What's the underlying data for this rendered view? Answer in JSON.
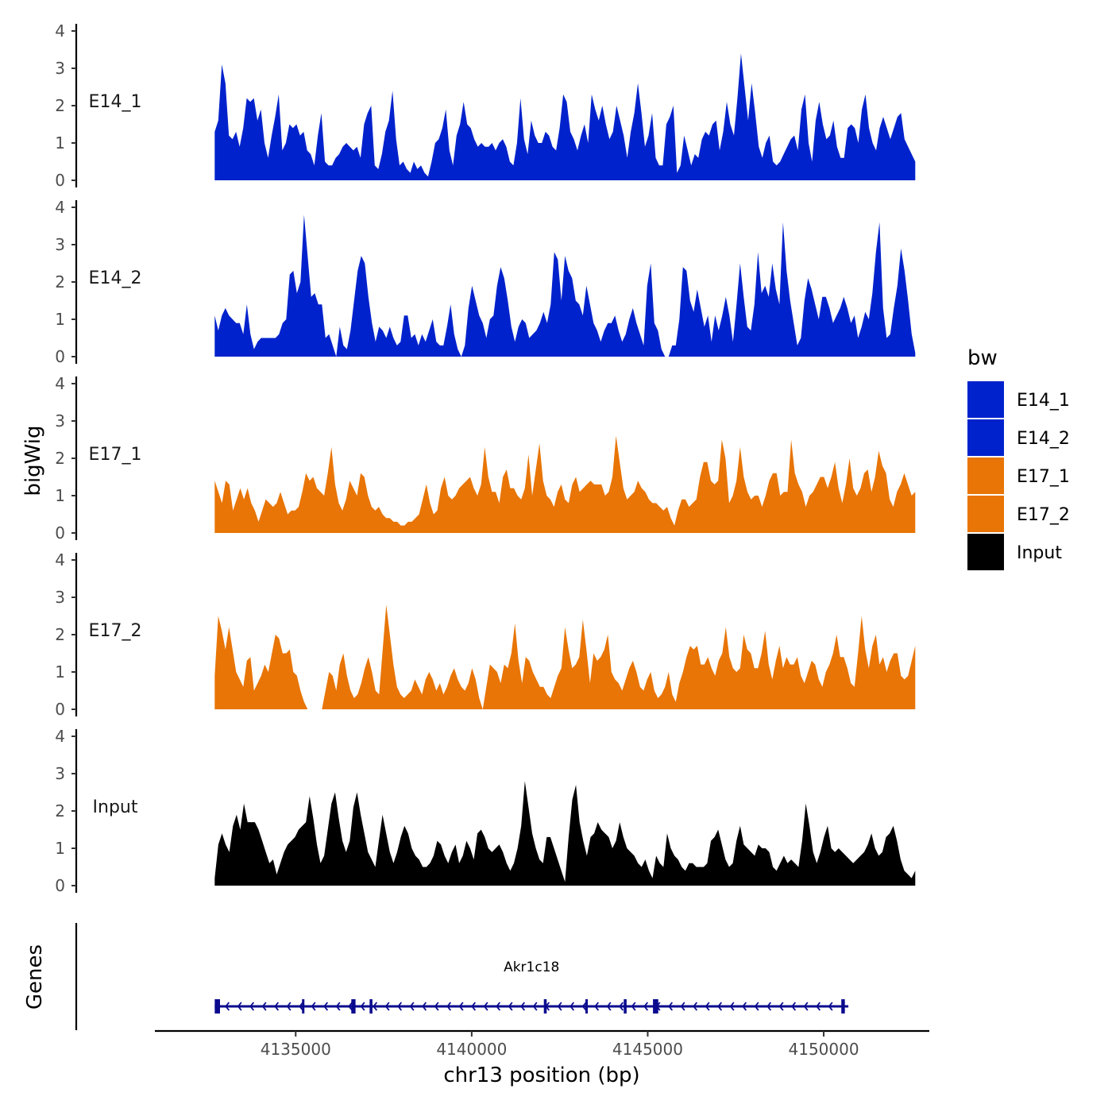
{
  "chart_data": {
    "type": "area",
    "genome_track": true,
    "ylabel": "bigWig",
    "xlabel": "chr13 position (bp)",
    "genes_label": "Genes",
    "xlim": [
      4131000,
      4153000
    ],
    "x_start": 4132700,
    "x_end": 4152600,
    "x_ticks": [
      4135000,
      4140000,
      4145000,
      4150000
    ],
    "x_tick_labels": [
      "4135000",
      "4140000",
      "4145000",
      "4150000"
    ],
    "ylim": [
      0,
      4
    ],
    "y_ticks": [
      0,
      1,
      2,
      3,
      4
    ],
    "y_tick_labels": [
      "0",
      "1",
      "2",
      "3",
      "4"
    ],
    "legend": {
      "title": "bw",
      "placement": "right",
      "entries": [
        {
          "label": "E14_1",
          "color": "#0022CC"
        },
        {
          "label": "E14_2",
          "color": "#0022CC"
        },
        {
          "label": "E17_1",
          "color": "#E87506"
        },
        {
          "label": "E17_2",
          "color": "#E87506"
        },
        {
          "label": "Input",
          "color": "#000000"
        }
      ]
    },
    "series": [
      {
        "name": "E14_1",
        "color": "#0022CC",
        "values": [
          1.3,
          1.6,
          3.1,
          2.6,
          1.2,
          1.1,
          1.3,
          0.9,
          1.4,
          2.2,
          2.1,
          2.2,
          1.6,
          1.9,
          1.0,
          0.6,
          1.2,
          1.7,
          2.3,
          0.8,
          1.0,
          1.5,
          1.4,
          1.5,
          1.2,
          1.3,
          0.8,
          0.7,
          0.4,
          1.2,
          1.8,
          0.5,
          0.4,
          0.4,
          0.6,
          0.7,
          0.9,
          1.0,
          0.9,
          0.8,
          0.9,
          0.6,
          1.5,
          1.8,
          2.0,
          0.4,
          0.3,
          0.7,
          1.3,
          1.6,
          2.4,
          1.1,
          0.4,
          0.5,
          0.3,
          0.2,
          0.5,
          0.3,
          0.4,
          0.2,
          0.1,
          0.5,
          1.0,
          1.1,
          1.4,
          1.9,
          0.8,
          0.4,
          1.2,
          1.5,
          2.1,
          1.5,
          1.4,
          1.1,
          0.9,
          1.0,
          0.9,
          0.9,
          1.0,
          0.8,
          1.0,
          1.1,
          0.9,
          0.5,
          0.4,
          1.0,
          2.2,
          1.1,
          0.7,
          1.6,
          1.2,
          1.0,
          1.0,
          1.3,
          1.2,
          0.9,
          0.8,
          1.4,
          2.3,
          2.1,
          1.3,
          1.1,
          0.8,
          1.2,
          1.5,
          1.0,
          2.3,
          1.9,
          1.6,
          2.0,
          1.5,
          1.1,
          1.3,
          2.0,
          1.6,
          1.2,
          0.6,
          1.3,
          1.8,
          2.6,
          1.8,
          0.9,
          1.2,
          1.8,
          0.6,
          0.4,
          0.4,
          1.5,
          1.7,
          2.0,
          0.2,
          0.4,
          1.2,
          0.8,
          0.4,
          0.7,
          0.6,
          1.1,
          1.3,
          1.2,
          1.5,
          1.6,
          0.8,
          1.3,
          2.1,
          1.5,
          1.2,
          2.2,
          3.4,
          2.5,
          1.6,
          2.6,
          1.8,
          0.9,
          0.6,
          1.0,
          1.2,
          0.5,
          0.4,
          0.5,
          0.7,
          0.9,
          1.1,
          1.2,
          0.8,
          1.9,
          2.3,
          1.0,
          0.5,
          1.6,
          2.1,
          1.5,
          1.1,
          1.2,
          1.6,
          0.9,
          0.6,
          0.6,
          1.4,
          1.5,
          1.4,
          1.0,
          1.9,
          2.3,
          1.4,
          1.0,
          0.8,
          1.4,
          1.7,
          1.4,
          1.1,
          1.4,
          1.7,
          1.8,
          1.1,
          0.9,
          0.7,
          0.5
        ]
      },
      {
        "name": "E14_2",
        "color": "#0022CC",
        "values": [
          1.1,
          0.7,
          1.1,
          1.3,
          1.1,
          1.0,
          0.9,
          0.9,
          0.6,
          1.4,
          0.6,
          0.2,
          0.4,
          0.5,
          0.5,
          0.5,
          0.5,
          0.5,
          0.6,
          0.9,
          1.0,
          2.2,
          2.3,
          1.7,
          2.0,
          3.8,
          2.7,
          1.6,
          1.7,
          1.4,
          1.4,
          0.5,
          0.6,
          0.3,
          0.0,
          0.8,
          0.3,
          0.2,
          0.7,
          1.5,
          2.3,
          2.7,
          2.5,
          1.6,
          0.9,
          0.4,
          0.8,
          0.7,
          0.5,
          0.8,
          0.5,
          0.3,
          0.4,
          1.1,
          1.1,
          0.5,
          0.6,
          0.3,
          0.6,
          0.4,
          0.7,
          1.0,
          0.4,
          0.3,
          0.3,
          0.8,
          1.4,
          0.6,
          0.2,
          0.0,
          0.3,
          1.3,
          1.9,
          1.5,
          1.1,
          0.9,
          0.5,
          1.0,
          1.1,
          1.9,
          2.4,
          2.1,
          1.5,
          0.8,
          0.4,
          0.8,
          1.0,
          0.9,
          0.5,
          0.6,
          0.7,
          0.9,
          1.2,
          0.9,
          1.4,
          2.8,
          2.6,
          1.5,
          2.7,
          2.3,
          2.1,
          1.5,
          1.4,
          1.1,
          1.9,
          1.4,
          0.9,
          0.7,
          0.4,
          0.7,
          0.9,
          0.9,
          1.1,
          0.7,
          0.4,
          0.6,
          1.0,
          1.3,
          0.9,
          0.6,
          0.3,
          1.9,
          2.5,
          0.9,
          0.7,
          0.2,
          0.0,
          0.0,
          0.3,
          0.3,
          1.0,
          2.4,
          2.3,
          1.5,
          1.2,
          1.8,
          1.3,
          0.8,
          1.1,
          0.4,
          1.1,
          0.7,
          1.1,
          1.6,
          1.1,
          0.4,
          1.4,
          2.5,
          1.6,
          0.8,
          0.7,
          1.4,
          2.8,
          1.7,
          1.9,
          1.6,
          2.5,
          1.8,
          1.4,
          3.6,
          2.3,
          1.5,
          0.9,
          0.3,
          0.5,
          1.5,
          2.1,
          1.8,
          1.4,
          1.0,
          1.6,
          1.6,
          1.3,
          0.9,
          1.1,
          1.3,
          1.6,
          1.3,
          0.9,
          1.1,
          0.5,
          0.8,
          1.2,
          1.0,
          1.7,
          2.8,
          3.6,
          1.3,
          0.5,
          0.6,
          1.3,
          1.9,
          2.9,
          2.3,
          1.5,
          0.6,
          0.1
        ]
      },
      {
        "name": "E17_1",
        "color": "#E87506",
        "values": [
          1.4,
          1.1,
          0.8,
          1.4,
          1.3,
          0.6,
          0.9,
          1.2,
          0.9,
          1.2,
          0.8,
          0.6,
          0.3,
          0.6,
          0.9,
          0.8,
          0.7,
          0.8,
          1.1,
          0.8,
          0.5,
          0.6,
          0.6,
          0.7,
          1.1,
          1.6,
          1.4,
          1.5,
          1.2,
          1.1,
          1.0,
          1.6,
          2.3,
          1.3,
          0.8,
          0.6,
          0.9,
          1.4,
          1.2,
          1.0,
          1.6,
          1.5,
          1.0,
          0.7,
          0.6,
          0.7,
          0.5,
          0.4,
          0.4,
          0.3,
          0.3,
          0.2,
          0.2,
          0.3,
          0.3,
          0.4,
          0.5,
          0.9,
          1.3,
          0.8,
          0.5,
          0.6,
          1.2,
          1.5,
          1.0,
          0.9,
          1.0,
          1.2,
          1.3,
          1.4,
          1.5,
          1.2,
          1.0,
          1.3,
          2.3,
          1.5,
          1.1,
          1.1,
          0.8,
          1.5,
          1.7,
          1.2,
          1.2,
          1.0,
          0.9,
          1.2,
          2.1,
          1.0,
          1.7,
          2.4,
          1.4,
          1.0,
          0.9,
          0.7,
          1.1,
          1.3,
          0.9,
          0.8,
          1.3,
          1.5,
          1.1,
          1.2,
          1.3,
          1.4,
          1.3,
          1.3,
          1.3,
          1.0,
          1.1,
          1.5,
          2.6,
          1.9,
          1.2,
          0.9,
          1.0,
          1.1,
          1.4,
          1.2,
          1.1,
          0.9,
          0.8,
          0.8,
          0.7,
          0.6,
          0.7,
          0.4,
          0.2,
          0.6,
          0.9,
          0.9,
          0.7,
          0.8,
          0.9,
          1.5,
          1.9,
          1.9,
          1.4,
          1.3,
          1.4,
          2.5,
          2.0,
          0.8,
          1.0,
          1.4,
          2.3,
          1.5,
          1.1,
          0.9,
          1.0,
          1.0,
          0.7,
          1.0,
          1.4,
          1.6,
          1.6,
          1.0,
          1.1,
          1.1,
          2.5,
          1.6,
          1.3,
          1.1,
          0.7,
          1.0,
          1.1,
          1.3,
          1.5,
          1.5,
          1.2,
          1.5,
          1.9,
          1.2,
          0.8,
          1.3,
          2.0,
          1.2,
          1.0,
          1.2,
          1.6,
          1.7,
          1.1,
          1.5,
          2.2,
          1.8,
          1.6,
          0.9,
          0.7,
          1.1,
          1.3,
          1.6,
          1.3,
          1.0,
          1.1
        ]
      },
      {
        "name": "E17_2",
        "color": "#E87506",
        "values": [
          0.9,
          2.5,
          2.1,
          1.6,
          2.2,
          1.6,
          1.0,
          0.8,
          0.6,
          1.3,
          1.4,
          0.5,
          0.7,
          0.9,
          1.2,
          1.0,
          1.5,
          2.0,
          1.9,
          1.5,
          1.5,
          1.6,
          1.0,
          0.9,
          0.5,
          0.2,
          0.0,
          0.0,
          0.0,
          0.0,
          0.0,
          0.5,
          1.0,
          0.9,
          0.5,
          1.2,
          1.5,
          0.9,
          0.5,
          0.3,
          0.4,
          0.7,
          1.1,
          1.4,
          1.0,
          0.5,
          0.4,
          1.6,
          2.8,
          2.0,
          1.2,
          0.6,
          0.4,
          0.3,
          0.4,
          0.5,
          0.8,
          0.6,
          0.4,
          0.8,
          1.0,
          0.8,
          0.5,
          0.7,
          0.4,
          0.6,
          0.9,
          1.1,
          0.8,
          0.6,
          0.5,
          0.7,
          1.1,
          0.8,
          0.3,
          0.0,
          0.6,
          1.2,
          1.1,
          1.0,
          0.7,
          1.2,
          1.1,
          1.5,
          2.3,
          1.3,
          0.7,
          1.4,
          1.3,
          1.0,
          0.8,
          0.6,
          0.6,
          0.4,
          0.3,
          0.6,
          0.9,
          1.1,
          2.2,
          1.6,
          1.1,
          1.2,
          1.4,
          2.4,
          1.6,
          0.7,
          1.5,
          1.3,
          1.4,
          1.6,
          2.0,
          1.0,
          0.8,
          0.7,
          0.5,
          0.8,
          1.1,
          1.3,
          1.0,
          0.6,
          0.5,
          0.8,
          1.0,
          0.5,
          0.3,
          0.4,
          0.6,
          1.0,
          0.4,
          0.2,
          0.7,
          1.0,
          1.4,
          1.7,
          1.6,
          1.7,
          1.2,
          1.2,
          1.4,
          1.1,
          0.9,
          1.3,
          1.5,
          2.2,
          1.4,
          1.1,
          1.0,
          1.1,
          2.0,
          1.6,
          1.5,
          1.1,
          1.1,
          1.5,
          2.1,
          1.2,
          0.8,
          1.3,
          1.7,
          1.1,
          1.4,
          1.2,
          1.2,
          1.4,
          0.9,
          0.7,
          1.0,
          1.3,
          1.2,
          0.8,
          0.6,
          1.0,
          1.2,
          1.5,
          2.0,
          1.4,
          1.4,
          1.1,
          0.7,
          0.6,
          1.5,
          2.5,
          1.6,
          1.1,
          1.7,
          2.0,
          1.2,
          1.4,
          1.0,
          1.3,
          1.5,
          1.5,
          0.9,
          0.8,
          0.9,
          1.3,
          1.7
        ]
      },
      {
        "name": "Input",
        "color": "#000000",
        "values": [
          0.2,
          1.1,
          1.4,
          1.1,
          0.9,
          1.6,
          1.9,
          1.5,
          2.2,
          1.7,
          1.7,
          1.7,
          1.5,
          1.2,
          0.9,
          0.6,
          0.7,
          0.3,
          0.6,
          0.9,
          1.1,
          1.2,
          1.3,
          1.5,
          1.6,
          1.7,
          2.4,
          1.8,
          1.1,
          0.6,
          0.8,
          1.5,
          2.2,
          2.5,
          1.8,
          1.2,
          0.9,
          1.2,
          2.1,
          2.5,
          1.9,
          1.4,
          0.9,
          0.7,
          0.5,
          1.2,
          1.9,
          1.4,
          0.9,
          0.6,
          0.9,
          1.3,
          1.6,
          1.4,
          1.0,
          0.8,
          0.7,
          0.5,
          0.5,
          0.6,
          0.8,
          1.2,
          1.1,
          0.8,
          0.6,
          0.9,
          1.1,
          0.6,
          0.8,
          1.2,
          1.0,
          0.7,
          1.4,
          1.5,
          1.3,
          1.0,
          0.9,
          1.0,
          1.1,
          0.9,
          0.6,
          0.4,
          0.6,
          1.0,
          1.6,
          2.8,
          2.1,
          1.4,
          1.0,
          0.7,
          0.6,
          1.3,
          1.3,
          1.0,
          0.7,
          0.4,
          0.1,
          1.3,
          2.3,
          2.7,
          1.7,
          1.2,
          0.8,
          1.3,
          1.4,
          1.7,
          1.5,
          1.4,
          1.3,
          1.0,
          1.2,
          1.7,
          1.3,
          1.0,
          0.9,
          0.8,
          0.6,
          0.5,
          0.7,
          0.4,
          0.2,
          0.8,
          0.6,
          0.5,
          1.4,
          1.0,
          0.8,
          0.7,
          0.5,
          0.4,
          0.6,
          0.6,
          0.5,
          0.5,
          0.5,
          0.6,
          1.2,
          1.3,
          1.5,
          1.1,
          0.7,
          0.5,
          0.6,
          1.2,
          1.6,
          1.1,
          1.0,
          0.9,
          0.8,
          1.1,
          1.0,
          1.0,
          0.9,
          0.5,
          0.4,
          0.6,
          0.8,
          0.6,
          0.7,
          0.6,
          0.5,
          1.2,
          2.2,
          1.6,
          0.9,
          0.6,
          0.9,
          1.3,
          1.6,
          1.0,
          0.9,
          1.0,
          0.9,
          0.8,
          0.7,
          0.6,
          0.7,
          0.8,
          0.9,
          1.1,
          1.4,
          1.0,
          0.8,
          0.9,
          1.3,
          1.4,
          1.6,
          1.2,
          0.7,
          0.4,
          0.3,
          0.2,
          0.4
        ]
      }
    ],
    "gene": {
      "name": "Akr1c18",
      "start": 4132700,
      "end": 4150700,
      "strand": "-",
      "color": "#0A0A8E",
      "exons": [
        {
          "start": 4132700,
          "end": 4132850
        },
        {
          "start": 4135180,
          "end": 4135230
        },
        {
          "start": 4136580,
          "end": 4136700
        },
        {
          "start": 4137100,
          "end": 4137180
        },
        {
          "start": 4142050,
          "end": 4142130
        },
        {
          "start": 4143230,
          "end": 4143270
        },
        {
          "start": 4144320,
          "end": 4144400
        },
        {
          "start": 4145150,
          "end": 4145300
        },
        {
          "start": 4150500,
          "end": 4150600
        }
      ]
    }
  }
}
